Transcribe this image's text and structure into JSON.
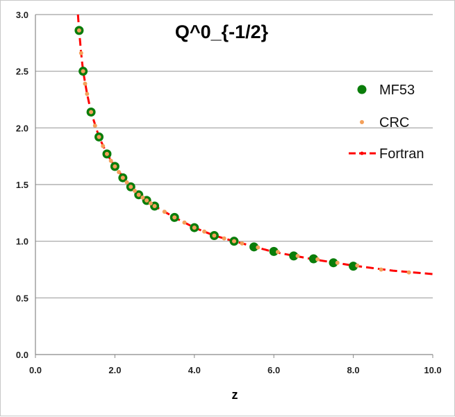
{
  "chart_data": {
    "type": "scatter",
    "title": "Q^0_{-1/2}",
    "xlabel": "z",
    "ylabel": "",
    "xlim": [
      0,
      10
    ],
    "ylim": [
      0,
      3
    ],
    "xticks": [
      "0.0",
      "2.0",
      "4.0",
      "6.0",
      "8.0",
      "10.0"
    ],
    "yticks": [
      "0.0",
      "0.5",
      "1.0",
      "1.5",
      "2.0",
      "2.5",
      "3.0"
    ],
    "grid": "horizontal",
    "legend_position": "right",
    "series": [
      {
        "name": "MF53",
        "style": "marker",
        "color": "#0a7d0a",
        "x": [
          1.1,
          1.2,
          1.4,
          1.6,
          1.8,
          2.0,
          2.2,
          2.4,
          2.6,
          2.8,
          3.0,
          3.5,
          4.0,
          4.5,
          5.0,
          5.5,
          6.0,
          6.5,
          7.0,
          7.5,
          8.0
        ],
        "y": [
          2.86,
          2.5,
          2.14,
          1.92,
          1.77,
          1.66,
          1.56,
          1.48,
          1.41,
          1.36,
          1.31,
          1.21,
          1.12,
          1.05,
          1.0,
          0.95,
          0.91,
          0.87,
          0.845,
          0.81,
          0.78
        ]
      },
      {
        "name": "CRC",
        "style": "small-marker",
        "color": "#f4a05a",
        "x": [
          1.1,
          1.15,
          1.2,
          1.25,
          1.3,
          1.4,
          1.5,
          1.6,
          1.7,
          1.8,
          1.9,
          2.0,
          2.1,
          2.2,
          2.3,
          2.4,
          2.5,
          2.6,
          2.7,
          2.8,
          2.9,
          3.0,
          3.25,
          3.5,
          3.75,
          4.0,
          4.25,
          4.5,
          4.75,
          5.0,
          5.2,
          5.6,
          6.1,
          6.6,
          7.1,
          7.6,
          8.1,
          8.7,
          9.4
        ],
        "y": [
          2.86,
          2.66,
          2.5,
          2.39,
          2.3,
          2.14,
          2.02,
          1.92,
          1.84,
          1.77,
          1.71,
          1.66,
          1.61,
          1.56,
          1.52,
          1.48,
          1.445,
          1.41,
          1.385,
          1.36,
          1.335,
          1.31,
          1.26,
          1.21,
          1.165,
          1.12,
          1.085,
          1.05,
          1.025,
          1.0,
          0.98,
          0.945,
          0.905,
          0.87,
          0.84,
          0.81,
          0.785,
          0.75,
          0.725
        ]
      },
      {
        "name": "Fortran",
        "style": "dashed-line",
        "color": "#ff0000",
        "x": [
          1.07,
          1.1,
          1.15,
          1.2,
          1.3,
          1.4,
          1.6,
          1.8,
          2.0,
          2.4,
          2.8,
          3.0,
          3.5,
          4.0,
          4.5,
          5.0,
          6.0,
          7.0,
          8.0,
          9.0,
          10.0
        ],
        "y": [
          3.0,
          2.86,
          2.66,
          2.5,
          2.3,
          2.14,
          1.92,
          1.77,
          1.66,
          1.48,
          1.36,
          1.31,
          1.21,
          1.12,
          1.05,
          1.0,
          0.905,
          0.84,
          0.785,
          0.74,
          0.71
        ]
      }
    ]
  }
}
